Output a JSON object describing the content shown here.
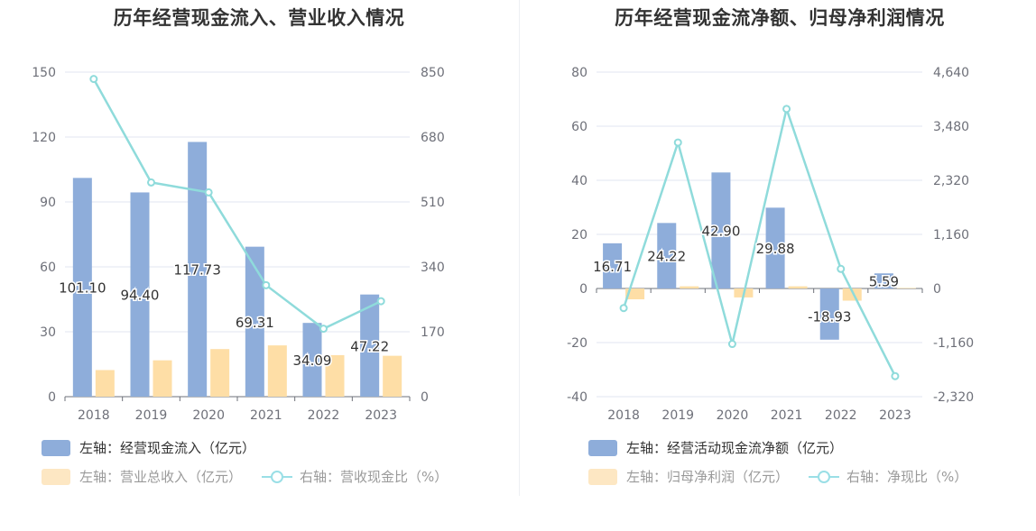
{
  "colors": {
    "bar_primary": "#8eadda",
    "bar_secondary": "#fedea6",
    "line": "#8fdbdb",
    "grid": "#e0e6f1",
    "axis_text": "#6e7079",
    "label_text": "#333333"
  },
  "chart_data": [
    {
      "type": "bar",
      "title": "历年经营现金流入、营业收入情况",
      "categories": [
        "2018",
        "2019",
        "2020",
        "2021",
        "2022",
        "2023"
      ],
      "y_left": {
        "ticks": [
          "0",
          "30",
          "60",
          "90",
          "120",
          "150"
        ],
        "ylim": [
          0,
          150
        ]
      },
      "y_right": {
        "ticks": [
          "0",
          "170",
          "340",
          "510",
          "680",
          "850"
        ],
        "ylim": [
          0,
          850
        ]
      },
      "series": [
        {
          "name": "左轴：经营现金流入（亿元）",
          "type": "bar",
          "axis": "left",
          "values": [
            101.1,
            94.4,
            117.73,
            69.31,
            34.09,
            47.22
          ],
          "labels": [
            "101.10",
            "94.40",
            "117.73",
            "69.31",
            "34.09",
            "47.22"
          ]
        },
        {
          "name": "左轴：营业总收入（亿元）",
          "type": "bar",
          "axis": "left",
          "values": [
            12.3,
            16.8,
            22.0,
            23.7,
            19.2,
            18.9
          ]
        },
        {
          "name": "右轴：营收现金比（%）",
          "type": "line",
          "axis": "right",
          "values": [
            832,
            561,
            535,
            292,
            178,
            250
          ]
        }
      ],
      "grid": true,
      "legend_position": "bottom"
    },
    {
      "type": "bar",
      "title": "历年经营现金流净额、归母净利润情况",
      "categories": [
        "2018",
        "2019",
        "2020",
        "2021",
        "2022",
        "2023"
      ],
      "y_left": {
        "ticks": [
          "-40",
          "-20",
          "0",
          "20",
          "40",
          "60",
          "80"
        ],
        "ylim": [
          -40,
          80
        ]
      },
      "y_right": {
        "ticks": [
          "-2,320",
          "-1,160",
          "0",
          "1,160",
          "2,320",
          "3,480",
          "4,640"
        ],
        "ylim": [
          -2320,
          4640
        ]
      },
      "series": [
        {
          "name": "左轴：经营活动现金流净额（亿元）",
          "type": "bar",
          "axis": "left",
          "values": [
            16.71,
            24.22,
            42.9,
            29.88,
            -18.93,
            5.59
          ],
          "labels": [
            "16.71",
            "24.22",
            "42.90",
            "29.88",
            "-18.93",
            "5.59"
          ]
        },
        {
          "name": "左轴：归母净利润（亿元）",
          "type": "bar",
          "axis": "left",
          "values": [
            -4.0,
            0.8,
            -3.3,
            0.8,
            -4.5,
            0.2
          ]
        },
        {
          "name": "右轴：净现比（%）",
          "type": "line",
          "axis": "right",
          "values": [
            -420,
            3130,
            -1190,
            3850,
            420,
            -1880
          ]
        }
      ],
      "grid": true,
      "legend_position": "bottom"
    }
  ]
}
